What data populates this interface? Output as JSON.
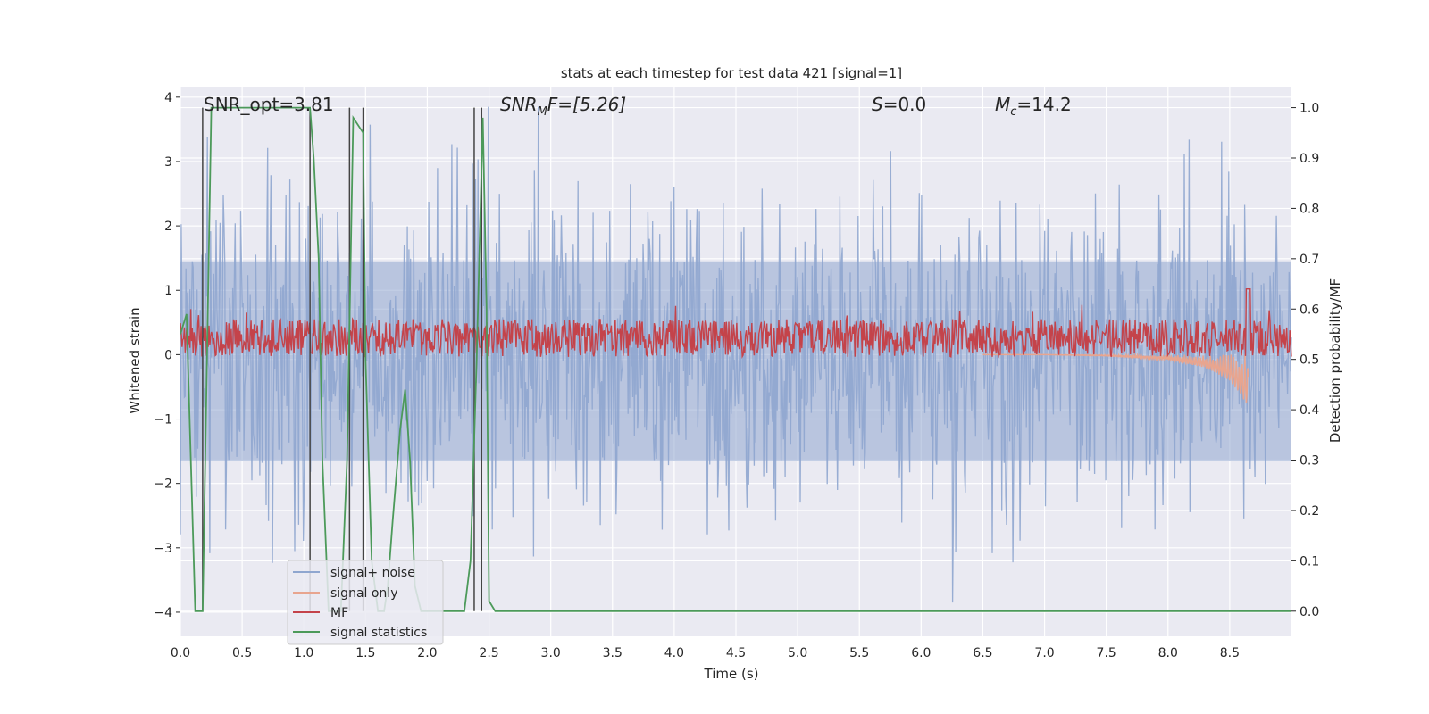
{
  "chart_data": {
    "type": "line",
    "title": "stats at each timestep for test data 421 [signal=1]",
    "xlabel": "Time (s)",
    "ylabel_left": "Whitened strain",
    "ylabel_right": "Detection probability/MF",
    "xlim": [
      0.0,
      9.0
    ],
    "ylim_left": [
      -4.375,
      4.15
    ],
    "ylim_right": [
      -0.05,
      1.04
    ],
    "x_ticks": [
      "0.0",
      "0.5",
      "1.0",
      "1.5",
      "2.0",
      "2.5",
      "3.0",
      "3.5",
      "4.0",
      "4.5",
      "5.0",
      "5.5",
      "6.0",
      "6.5",
      "7.0",
      "7.5",
      "8.0",
      "8.5"
    ],
    "y_ticks_left": [
      "−4",
      "−3",
      "−2",
      "−1",
      "0",
      "1",
      "2",
      "3",
      "4"
    ],
    "y_ticks_right": [
      "0.0",
      "0.1",
      "0.2",
      "0.3",
      "0.4",
      "0.5",
      "0.6",
      "0.7",
      "0.8",
      "0.9",
      "1.0"
    ],
    "grid": true,
    "legend_position": "lower-left",
    "annotations": {
      "snr_opt": "SNR_opt=3.81",
      "snr_mf_base": "SNR",
      "snr_mf_sub": "M",
      "snr_mf_rest": "F=[5.26]",
      "s_italic": "S",
      "s_rest": "=0.0",
      "mc_base": "M",
      "mc_sub": "c",
      "mc_rest": "=14.2"
    },
    "series": [
      {
        "name": "signal+ noise",
        "color": "#8fa6cf",
        "axis": "left",
        "description_values": "noise band roughly between -2.5 and 2.5, peaks to ±3.8"
      },
      {
        "name": "signal only",
        "color": "#e8a58f",
        "axis": "left",
        "values_x": [
          6.5,
          7.0,
          7.5,
          8.0,
          8.3,
          8.5,
          8.65
        ],
        "values_y": [
          0.0,
          0.0,
          -0.02,
          -0.08,
          -0.2,
          -0.4,
          -0.8
        ]
      },
      {
        "name": "MF",
        "color": "#c4434a",
        "axis": "right",
        "band": [
          0.505,
          0.58
        ],
        "peak": {
          "x": 8.65,
          "y": 0.64
        }
      },
      {
        "name": "signal statistics",
        "color": "#4c9a5a",
        "axis": "right",
        "x": [
          0.0,
          0.05,
          0.12,
          0.18,
          0.25,
          0.3,
          1.0,
          1.05,
          1.08,
          1.12,
          1.15,
          1.2,
          1.3,
          1.35,
          1.4,
          1.48,
          1.5,
          1.55,
          1.6,
          1.65,
          1.68,
          1.72,
          1.78,
          1.82,
          1.86,
          1.9,
          1.95,
          2.0,
          2.3,
          2.35,
          2.4,
          2.45,
          2.48,
          2.5,
          2.55,
          3.0,
          9.0
        ],
        "y": [
          0.55,
          0.59,
          0.0,
          0.0,
          1.0,
          1.0,
          1.0,
          1.0,
          0.9,
          0.7,
          0.3,
          0.0,
          0.0,
          0.3,
          0.98,
          0.95,
          0.5,
          0.1,
          0.0,
          0.0,
          0.05,
          0.18,
          0.36,
          0.44,
          0.3,
          0.05,
          0.0,
          0.0,
          0.0,
          0.1,
          0.5,
          0.98,
          0.6,
          0.02,
          0.0,
          0.0,
          0.0
        ]
      },
      {
        "name": "",
        "color": "#444444",
        "axis": "left",
        "description_values": "vertical trigger lines",
        "x": [
          0.18,
          1.05,
          1.37,
          1.48,
          2.38,
          2.44
        ]
      }
    ]
  },
  "colors": {
    "background_plot": "#eaeaf2",
    "grid": "#ffffff",
    "noise": "#8fa6cf",
    "signal": "#e8a58f",
    "mf": "#c4434a",
    "stats": "#4c9a5a",
    "vline": "#444444"
  }
}
